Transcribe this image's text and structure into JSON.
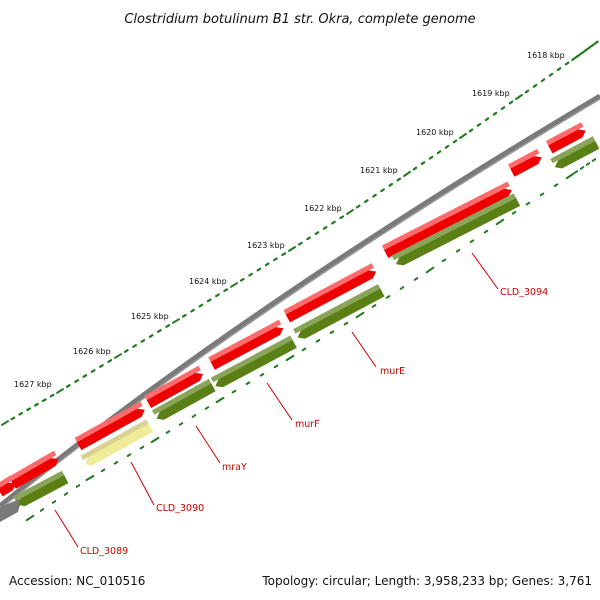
{
  "title": "Clostridium botulinum B1 str. Okra, complete genome",
  "footer": {
    "accession": "Accession: NC_010516",
    "summary": "Topology: circular; Length: 3,958,233 bp; Genes: 3,761"
  },
  "ticks": [
    "1618 kbp",
    "1619 kbp",
    "1620 kbp",
    "1621 kbp",
    "1622 kbp",
    "1623 kbp",
    "1624 kbp",
    "1625 kbp",
    "1626 kbp",
    "1627 kbp"
  ],
  "genes": [
    {
      "label": "CLD_3094"
    },
    {
      "label": "murE"
    },
    {
      "label": "murF"
    },
    {
      "label": "mraY"
    },
    {
      "label": "CLD_3090"
    },
    {
      "label": "CLD_3089"
    }
  ],
  "colors": {
    "forward_cds": "#ee0000",
    "reverse_cds": "#5a7f14",
    "highlight_cds": "#f0eb96",
    "backbone": "#7a7a7a",
    "tick_marks": "#1f7a1f",
    "label_text": "#cc0000"
  }
}
